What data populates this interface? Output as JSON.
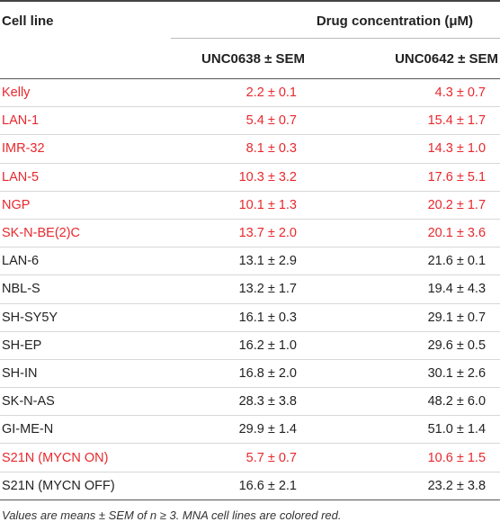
{
  "header": {
    "cell_line": "Cell line",
    "drug_concentration": "Drug concentration (μM)",
    "col1": "UNC0638 ± SEM",
    "col2": "UNC0642 ± SEM"
  },
  "colors": {
    "mna_red": "#e8282d",
    "text": "#222222"
  },
  "rows": [
    {
      "name": "Kelly",
      "v1": "2.2 ± 0.1",
      "v2": "4.3 ± 0.7",
      "mna": true
    },
    {
      "name": "LAN-1",
      "v1": "5.4 ± 0.7",
      "v2": "15.4 ± 1.7",
      "mna": true
    },
    {
      "name": "IMR-32",
      "v1": "8.1 ± 0.3",
      "v2": "14.3 ± 1.0",
      "mna": true
    },
    {
      "name": "LAN-5",
      "v1": "10.3 ± 3.2",
      "v2": "17.6 ± 5.1",
      "mna": true
    },
    {
      "name": "NGP",
      "v1": "10.1 ± 1.3",
      "v2": "20.2 ± 1.7",
      "mna": true
    },
    {
      "name": "SK-N-BE(2)C",
      "v1": "13.7 ± 2.0",
      "v2": "20.1 ± 3.6",
      "mna": true
    },
    {
      "name": "LAN-6",
      "v1": "13.1 ± 2.9",
      "v2": "21.6 ± 0.1",
      "mna": false
    },
    {
      "name": "NBL-S",
      "v1": "13.2 ± 1.7",
      "v2": "19.4 ± 4.3",
      "mna": false
    },
    {
      "name": "SH-SY5Y",
      "v1": "16.1 ± 0.3",
      "v2": "29.1 ± 0.7",
      "mna": false
    },
    {
      "name": "SH-EP",
      "v1": "16.2 ± 1.0",
      "v2": "29.6 ± 0.5",
      "mna": false
    },
    {
      "name": "SH-IN",
      "v1": "16.8 ± 2.0",
      "v2": "30.1 ± 2.6",
      "mna": false
    },
    {
      "name": "SK-N-AS",
      "v1": "28.3 ± 3.8",
      "v2": "48.2 ± 6.0",
      "mna": false
    },
    {
      "name": "GI-ME-N",
      "v1": "29.9 ± 1.4",
      "v2": "51.0 ± 1.4",
      "mna": false
    },
    {
      "name": "S21N (MYCN ON)",
      "v1": "5.7 ± 0.7",
      "v2": "10.6 ± 1.5",
      "mna": true
    },
    {
      "name": "S21N (MYCN OFF)",
      "v1": "16.6 ± 2.1",
      "v2": "23.2 ± 3.8",
      "mna": false
    }
  ],
  "footnote": "Values are means ± SEM of n ≥ 3. MNA cell lines are colored red."
}
